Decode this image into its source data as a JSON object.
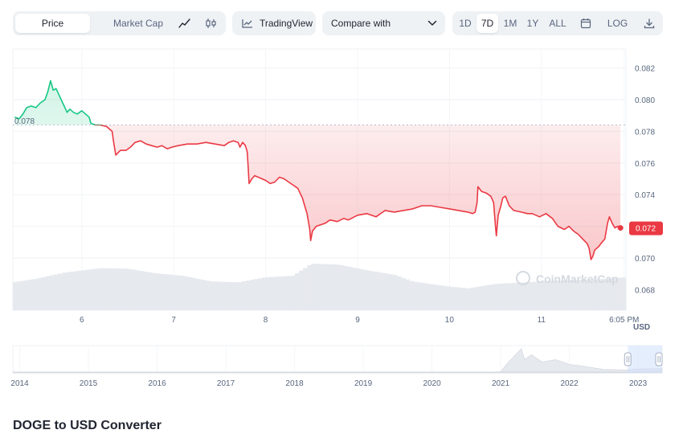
{
  "toolbar": {
    "mode_tabs": [
      "Price",
      "Market Cap"
    ],
    "active_mode": "Price",
    "tradingview_label": "TradingView",
    "compare_label": "Compare with",
    "ranges": [
      "1D",
      "7D",
      "1M",
      "1Y",
      "ALL"
    ],
    "active_range": "7D",
    "log_label": "LOG",
    "icons": [
      "line-chart-icon",
      "candlestick-icon",
      "tradingview-icon",
      "chevron-down-icon",
      "calendar-icon",
      "download-icon"
    ]
  },
  "chart_data": {
    "type": "line",
    "currency": "USD",
    "open_price_label": "0.078",
    "current_price_label": "0.072",
    "y_ticks": [
      "0.082",
      "0.080",
      "0.078",
      "0.076",
      "0.074",
      "0.072",
      "0.070",
      "0.068"
    ],
    "ylim": [
      0.0667,
      0.0832
    ],
    "reference_price": 0.0784,
    "x_ticks": [
      "6",
      "7",
      "8",
      "9",
      "10",
      "11",
      "6:05 PM"
    ],
    "x_tick_days": [
      6,
      7,
      8,
      9,
      10,
      11,
      11.9
    ],
    "xlim": [
      5.25,
      11.92
    ],
    "colors": {
      "above": "#16c784",
      "below": "#ea3943"
    },
    "watermark": "CoinMarketCap",
    "price_series": [
      [
        5.27,
        0.0789
      ],
      [
        5.32,
        0.0788
      ],
      [
        5.36,
        0.0791
      ],
      [
        5.4,
        0.0795
      ],
      [
        5.45,
        0.0796
      ],
      [
        5.5,
        0.0795
      ],
      [
        5.55,
        0.0798
      ],
      [
        5.6,
        0.08
      ],
      [
        5.63,
        0.0805
      ],
      [
        5.66,
        0.0812
      ],
      [
        5.69,
        0.0806
      ],
      [
        5.72,
        0.0807
      ],
      [
        5.76,
        0.0802
      ],
      [
        5.8,
        0.0797
      ],
      [
        5.84,
        0.0792
      ],
      [
        5.87,
        0.0794
      ],
      [
        5.91,
        0.0792
      ],
      [
        5.95,
        0.0791
      ],
      [
        6.0,
        0.0793
      ],
      [
        6.04,
        0.0791
      ],
      [
        6.08,
        0.0789
      ],
      [
        6.1,
        0.0785
      ],
      [
        6.15,
        0.0784
      ],
      [
        6.2,
        0.0784
      ],
      [
        6.27,
        0.0783
      ],
      [
        6.33,
        0.078
      ],
      [
        6.35,
        0.0772
      ],
      [
        6.37,
        0.0765
      ],
      [
        6.42,
        0.0768
      ],
      [
        6.48,
        0.0768
      ],
      [
        6.53,
        0.077
      ],
      [
        6.58,
        0.0773
      ],
      [
        6.64,
        0.0774
      ],
      [
        6.7,
        0.0772
      ],
      [
        6.76,
        0.0771
      ],
      [
        6.82,
        0.077
      ],
      [
        6.87,
        0.0771
      ],
      [
        6.93,
        0.0769
      ],
      [
        6.98,
        0.077
      ],
      [
        7.05,
        0.0771
      ],
      [
        7.15,
        0.0772
      ],
      [
        7.25,
        0.0772
      ],
      [
        7.35,
        0.0773
      ],
      [
        7.45,
        0.0772
      ],
      [
        7.55,
        0.0771
      ],
      [
        7.6,
        0.0773
      ],
      [
        7.65,
        0.0774
      ],
      [
        7.7,
        0.0773
      ],
      [
        7.72,
        0.077
      ],
      [
        7.75,
        0.0773
      ],
      [
        7.78,
        0.0771
      ],
      [
        7.8,
        0.0767
      ],
      [
        7.81,
        0.0758
      ],
      [
        7.82,
        0.0747
      ],
      [
        7.85,
        0.075
      ],
      [
        7.88,
        0.0752
      ],
      [
        7.92,
        0.0751
      ],
      [
        7.96,
        0.075
      ],
      [
        8.0,
        0.0749
      ],
      [
        8.05,
        0.0747
      ],
      [
        8.1,
        0.0748
      ],
      [
        8.15,
        0.0751
      ],
      [
        8.2,
        0.075
      ],
      [
        8.25,
        0.0748
      ],
      [
        8.3,
        0.0746
      ],
      [
        8.35,
        0.0744
      ],
      [
        8.4,
        0.0738
      ],
      [
        8.45,
        0.0728
      ],
      [
        8.48,
        0.0718
      ],
      [
        8.49,
        0.0711
      ],
      [
        8.51,
        0.0717
      ],
      [
        8.55,
        0.072
      ],
      [
        8.6,
        0.0721
      ],
      [
        8.65,
        0.0722
      ],
      [
        8.7,
        0.0724
      ],
      [
        8.78,
        0.0723
      ],
      [
        8.85,
        0.0725
      ],
      [
        8.9,
        0.0724
      ],
      [
        9.0,
        0.0727
      ],
      [
        9.1,
        0.0728
      ],
      [
        9.2,
        0.0726
      ],
      [
        9.3,
        0.073
      ],
      [
        9.4,
        0.0729
      ],
      [
        9.5,
        0.073
      ],
      [
        9.6,
        0.0731
      ],
      [
        9.7,
        0.0733
      ],
      [
        9.8,
        0.0733
      ],
      [
        9.9,
        0.0732
      ],
      [
        10.0,
        0.0731
      ],
      [
        10.1,
        0.073
      ],
      [
        10.2,
        0.0729
      ],
      [
        10.25,
        0.0728
      ],
      [
        10.28,
        0.0729
      ],
      [
        10.3,
        0.0735
      ],
      [
        10.31,
        0.0745
      ],
      [
        10.35,
        0.0742
      ],
      [
        10.4,
        0.0741
      ],
      [
        10.45,
        0.0739
      ],
      [
        10.48,
        0.0735
      ],
      [
        10.5,
        0.072
      ],
      [
        10.51,
        0.0714
      ],
      [
        10.53,
        0.0727
      ],
      [
        10.56,
        0.0733
      ],
      [
        10.58,
        0.0738
      ],
      [
        10.61,
        0.0739
      ],
      [
        10.65,
        0.0733
      ],
      [
        10.7,
        0.073
      ],
      [
        10.78,
        0.0729
      ],
      [
        10.85,
        0.0728
      ],
      [
        10.9,
        0.0728
      ],
      [
        10.98,
        0.0726
      ],
      [
        11.05,
        0.0728
      ],
      [
        11.12,
        0.0725
      ],
      [
        11.18,
        0.072
      ],
      [
        11.25,
        0.0718
      ],
      [
        11.3,
        0.072
      ],
      [
        11.35,
        0.0717
      ],
      [
        11.4,
        0.0715
      ],
      [
        11.45,
        0.0712
      ],
      [
        11.5,
        0.0709
      ],
      [
        11.52,
        0.0706
      ],
      [
        11.54,
        0.0699
      ],
      [
        11.56,
        0.0701
      ],
      [
        11.58,
        0.0705
      ],
      [
        11.62,
        0.0707
      ],
      [
        11.66,
        0.071
      ],
      [
        11.69,
        0.0712
      ],
      [
        11.72,
        0.0722
      ],
      [
        11.74,
        0.0726
      ],
      [
        11.77,
        0.0722
      ],
      [
        11.8,
        0.0719
      ],
      [
        11.83,
        0.072
      ],
      [
        11.86,
        0.0719
      ]
    ],
    "volume_series_relative": [
      [
        5.25,
        0.55
      ],
      [
        5.5,
        0.62
      ],
      [
        5.8,
        0.74
      ],
      [
        6.2,
        0.83
      ],
      [
        6.5,
        0.82
      ],
      [
        6.8,
        0.73
      ],
      [
        7.1,
        0.68
      ],
      [
        7.4,
        0.57
      ],
      [
        7.7,
        0.55
      ],
      [
        8.0,
        0.65
      ],
      [
        8.3,
        0.68
      ],
      [
        8.5,
        0.92
      ],
      [
        8.8,
        0.9
      ],
      [
        9.1,
        0.79
      ],
      [
        9.4,
        0.7
      ],
      [
        9.6,
        0.57
      ],
      [
        9.9,
        0.49
      ],
      [
        10.2,
        0.43
      ],
      [
        10.5,
        0.52
      ],
      [
        10.8,
        0.55
      ],
      [
        11.1,
        0.58
      ],
      [
        11.4,
        0.6
      ],
      [
        11.7,
        0.62
      ],
      [
        11.92,
        0.65
      ]
    ],
    "navigator": {
      "x_ticks": [
        "2014",
        "2015",
        "2016",
        "2017",
        "2018",
        "2019",
        "2020",
        "2021",
        "2022",
        "2023"
      ],
      "xlim": [
        2013.9,
        2023.35
      ],
      "tick_years": [
        2014,
        2015,
        2016,
        2017,
        2018,
        2019,
        2020,
        2021,
        2022,
        2023
      ],
      "history_relative": [
        [
          2013.9,
          0.0
        ],
        [
          2020.9,
          0.0
        ],
        [
          2021.0,
          0.05
        ],
        [
          2021.1,
          0.4
        ],
        [
          2021.3,
          1.0
        ],
        [
          2021.35,
          0.55
        ],
        [
          2021.45,
          0.75
        ],
        [
          2021.6,
          0.45
        ],
        [
          2021.8,
          0.55
        ],
        [
          2022.0,
          0.35
        ],
        [
          2022.2,
          0.28
        ],
        [
          2022.5,
          0.14
        ],
        [
          2022.8,
          0.12
        ],
        [
          2023.0,
          0.16
        ],
        [
          2023.35,
          0.18
        ]
      ],
      "selected_range": [
        2022.85,
        2023.35
      ]
    }
  },
  "converter": {
    "title": "DOGE to USD Converter"
  }
}
